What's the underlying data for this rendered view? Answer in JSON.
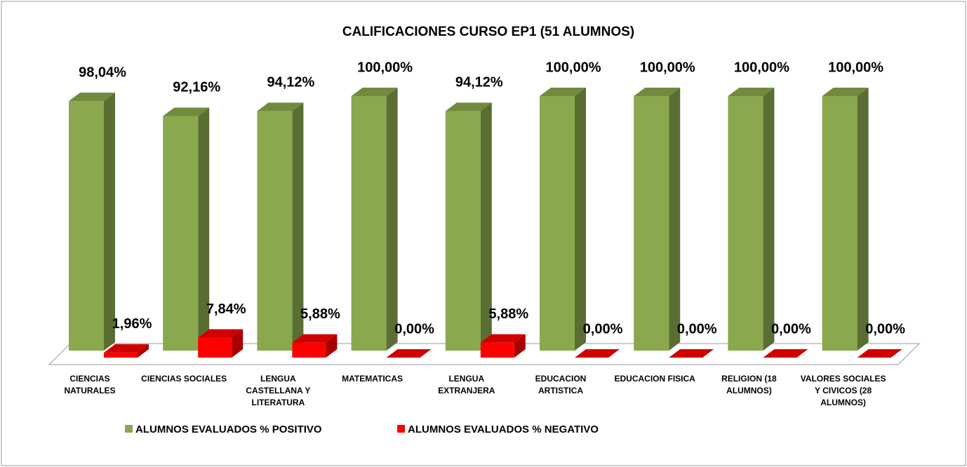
{
  "chart_data": {
    "type": "bar3d",
    "title": "CALIFICACIONES CURSO EP1 (51 ALUMNOS)",
    "categories": [
      "CIENCIAS NATURALES",
      "CIENCIAS SOCIALES",
      "LENGUA CASTELLANA Y LITERATURA",
      "MATEMATICAS",
      "LENGUA EXTRANJERA",
      "EDUCACION ARTISTICA",
      "EDUCACION FISICA",
      "RELIGION (18 ALUMNOS)",
      "VALORES SOCIALES Y CIVICOS (28 ALUMNOS)"
    ],
    "series": [
      {
        "name": "ALUMNOS EVALUADOS % POSITIVO",
        "color": "#8aa84e",
        "values": [
          98.04,
          92.16,
          94.12,
          100,
          94.12,
          100,
          100,
          100,
          100
        ],
        "value_labels": [
          "98,04%",
          "92,16%",
          "94,12%",
          "100,00%",
          "94,12%",
          "100,00%",
          "100,00%",
          "100,00%",
          "100,00%"
        ]
      },
      {
        "name": "ALUMNOS EVALUADOS % NEGATIVO",
        "color": "#ff0000",
        "values": [
          1.96,
          7.84,
          5.88,
          0,
          5.88,
          0,
          0,
          0,
          0
        ],
        "value_labels": [
          "1,96%",
          "7,84%",
          "5,88%",
          "0,00%",
          "5,88%",
          "0,00%",
          "0,00%",
          "0,00%",
          "0,00%"
        ]
      }
    ]
  }
}
